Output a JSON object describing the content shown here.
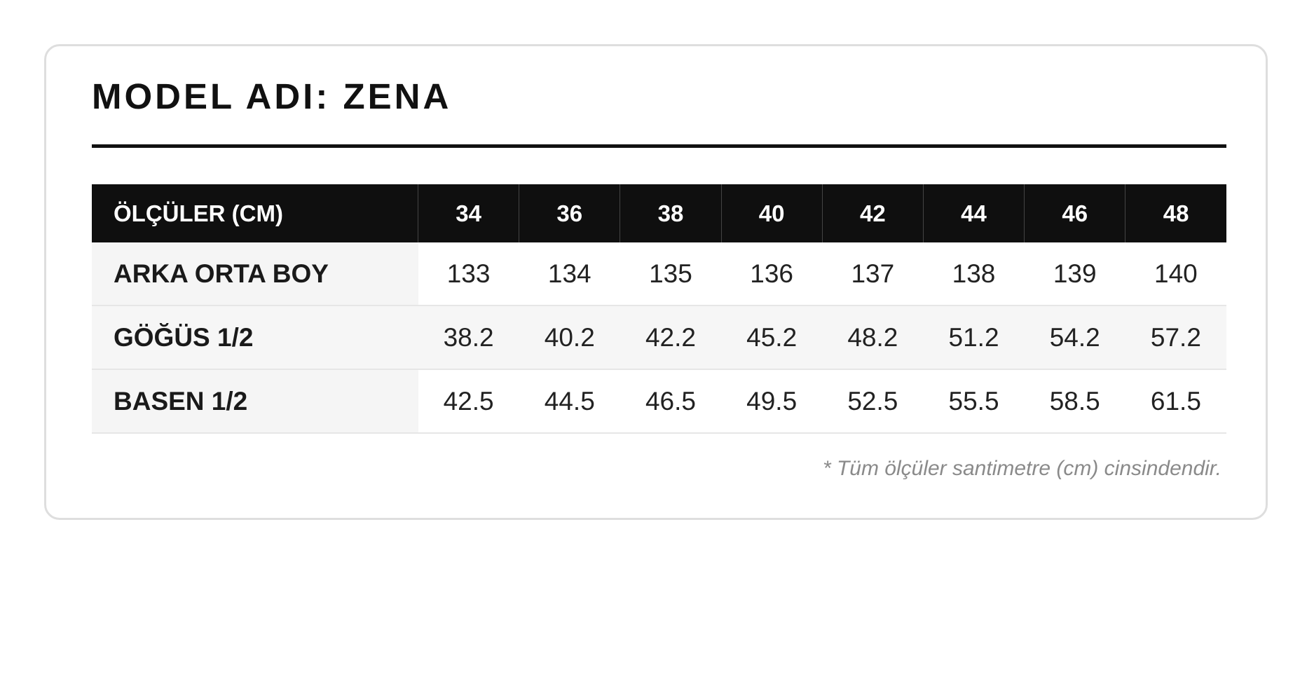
{
  "title": "MODEL ADI: ZENA",
  "table": {
    "header": [
      "ÖLÇÜLER (CM)",
      34,
      36,
      38,
      40,
      42,
      44,
      46,
      48
    ],
    "rows": [
      [
        "ARKA ORTA BOY",
        133,
        134,
        135,
        136,
        137,
        138,
        139,
        140
      ],
      [
        "GÖĞÜS 1/2",
        38.2,
        40.2,
        42.2,
        45.2,
        48.2,
        51.2,
        54.2,
        57.2
      ],
      [
        "BASEN 1/2",
        42.5,
        44.5,
        46.5,
        49.5,
        52.5,
        55.5,
        58.5,
        61.5
      ]
    ]
  },
  "footnote": "* Tüm ölçüler santimetre (cm) cinsindendir."
}
